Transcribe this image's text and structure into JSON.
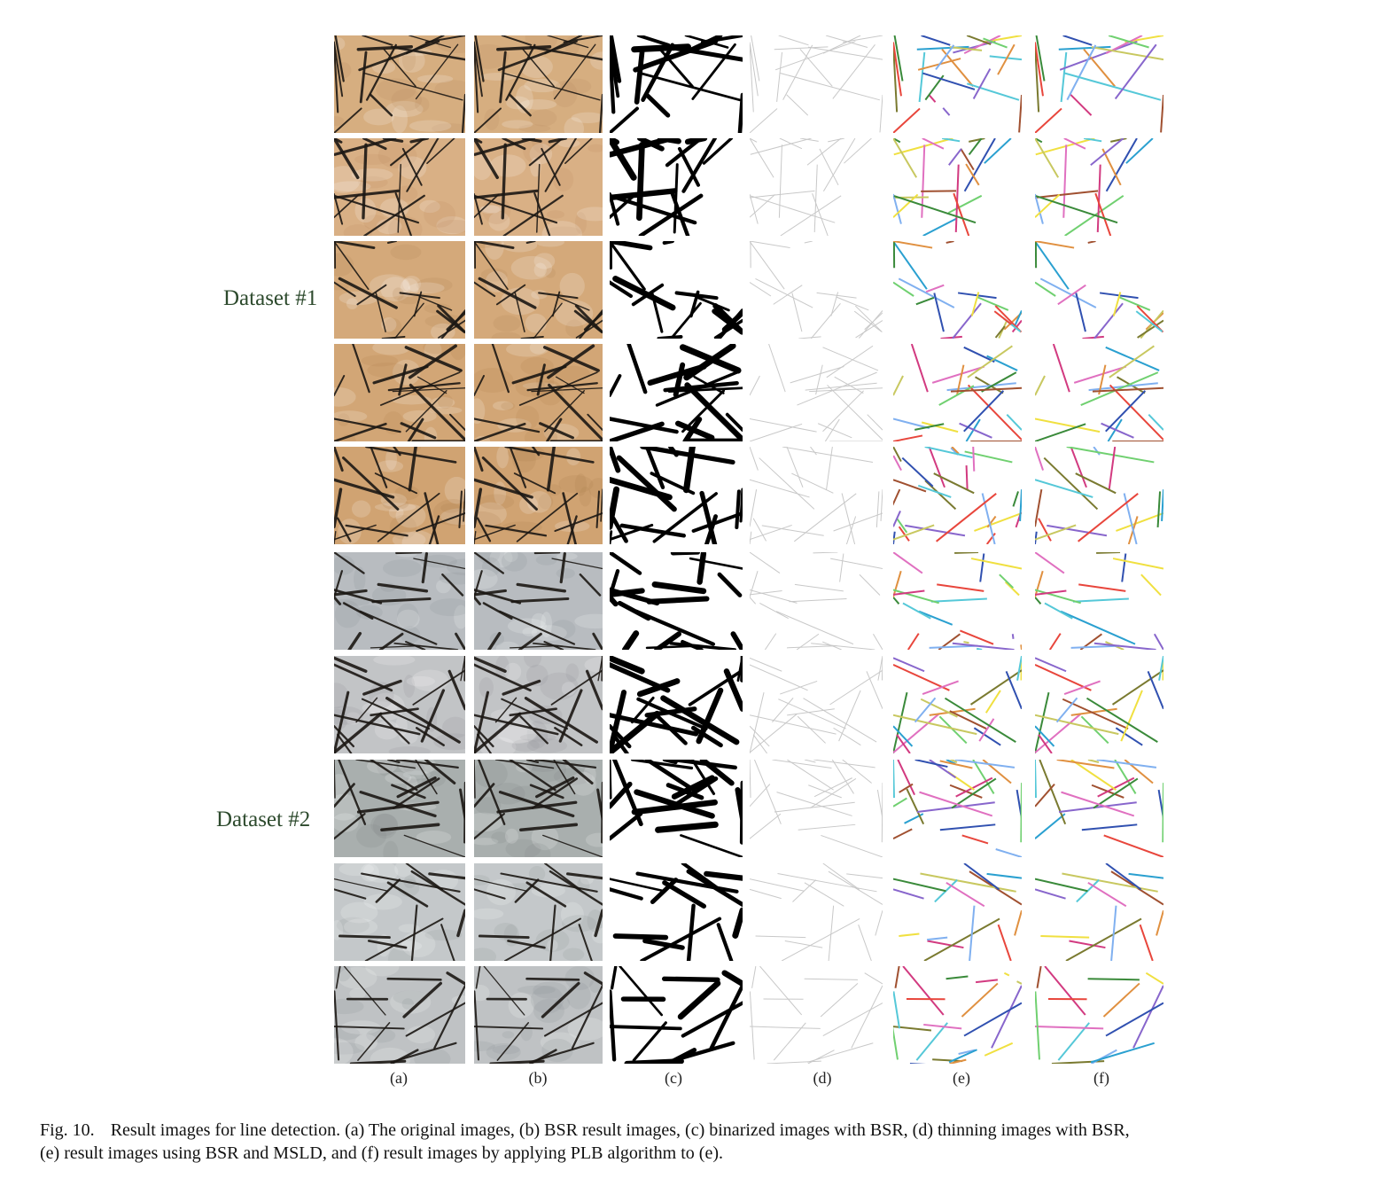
{
  "figure": {
    "dataset_labels": [
      "Dataset #1",
      "Dataset #2"
    ],
    "column_labels": [
      "(a)",
      "(b)",
      "(c)",
      "(d)",
      "(e)",
      "(f)"
    ],
    "column_types": [
      "photo",
      "photo",
      "binary",
      "thin",
      "colorlines",
      "colorlines"
    ],
    "rows": [
      {
        "dataset": "Dataset #1",
        "skin": "#d6ae80",
        "skin_dark": "#b88a5c"
      },
      {
        "dataset": "Dataset #1",
        "skin": "#d9b085",
        "skin_dark": "#bb8d60"
      },
      {
        "dataset": "Dataset #1",
        "skin": "#d4a97a",
        "skin_dark": "#b48455"
      },
      {
        "dataset": "Dataset #1",
        "skin": "#d2a676",
        "skin_dark": "#b08050"
      },
      {
        "dataset": "Dataset #1",
        "skin": "#d0a372",
        "skin_dark": "#ae7d4d"
      },
      {
        "dataset": "Dataset #2",
        "skin": "#b8bcc0",
        "skin_dark": "#8a8f95"
      },
      {
        "dataset": "Dataset #2",
        "skin": "#c2c4c6",
        "skin_dark": "#8e9296"
      },
      {
        "dataset": "Dataset #2",
        "skin": "#a9afae",
        "skin_dark": "#7f8685"
      },
      {
        "dataset": "Dataset #2",
        "skin": "#c4c8ca",
        "skin_dark": "#8f9498"
      },
      {
        "dataset": "Dataset #2",
        "skin": "#bfc2c4",
        "skin_dark": "#8c9093"
      }
    ],
    "line_palette": [
      "#e8463c",
      "#55c8d8",
      "#8866cc",
      "#f0e040",
      "#3a8a3a",
      "#e070c0",
      "#3050b0",
      "#e09040",
      "#70d070",
      "#a05030",
      "#2aa0d0",
      "#c8c860",
      "#d23a80",
      "#7a7a30",
      "#80b0f0"
    ],
    "caption": {
      "number": "Fig. 10.",
      "line1": "Result images for line detection. (a) The original images, (b) BSR result images, (c) binarized images with BSR, (d) thinning images with BSR,",
      "line2": "(e) result images using BSR and MSLD, and (f) result images by applying PLB algorithm to (e)."
    }
  }
}
